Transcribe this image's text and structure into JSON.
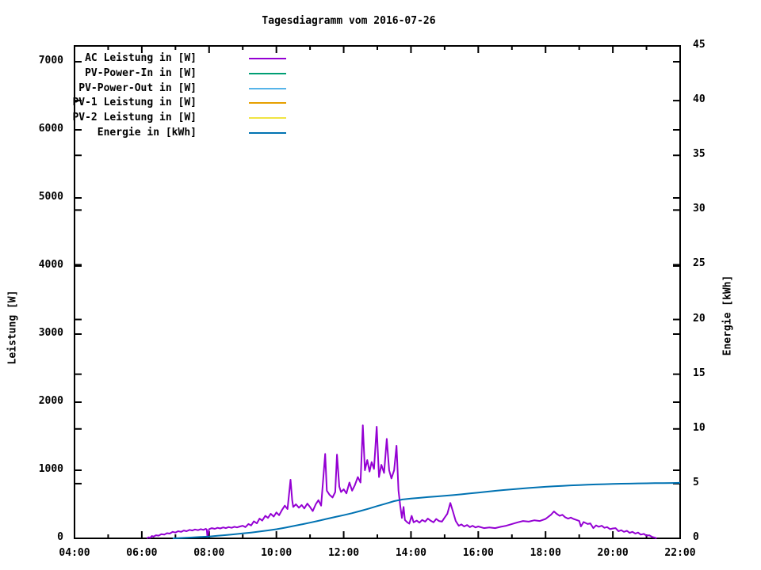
{
  "title": "Tagesdiagramm vom 2016-07-26",
  "axes": {
    "x": {
      "ticks": [
        {
          "hour": 4,
          "label": "04:00"
        },
        {
          "hour": 6,
          "label": "06:00"
        },
        {
          "hour": 8,
          "label": "08:00"
        },
        {
          "hour": 10,
          "label": "10:00"
        },
        {
          "hour": 12,
          "label": "12:00"
        },
        {
          "hour": 14,
          "label": "14:00"
        },
        {
          "hour": 16,
          "label": "16:00"
        },
        {
          "hour": 18,
          "label": "18:00"
        },
        {
          "hour": 20,
          "label": "20:00"
        },
        {
          "hour": 22,
          "label": "22:00"
        }
      ],
      "minor_hours": [
        5,
        7,
        9,
        11,
        13,
        15,
        17,
        19,
        21
      ],
      "min_hour": 4,
      "max_hour": 22
    },
    "y_left": {
      "label": "Leistung [W]",
      "min": 0,
      "tick_step": 1000,
      "ticks": [
        0,
        1000,
        2000,
        3000,
        4000,
        5000,
        6000,
        7000
      ]
    },
    "y_right": {
      "label": "Energie [kWh]",
      "min": 0,
      "max": 45,
      "tick_step": 5,
      "ticks": [
        0,
        5,
        10,
        15,
        20,
        25,
        30,
        35,
        40,
        45
      ]
    }
  },
  "legend": [
    {
      "label": "AC Leistung in [W]",
      "color": "#9400d3"
    },
    {
      "label": "PV-Power-In in [W]",
      "color": "#009e73"
    },
    {
      "label": "PV-Power-Out in [W]",
      "color": "#56b4e9"
    },
    {
      "label": "PV-1 Leistung in [W]",
      "color": "#e69f00"
    },
    {
      "label": "PV-2 Leistung in [W]",
      "color": "#f0e442"
    },
    {
      "label": "Energie in [kWh]",
      "color": "#0072b2"
    }
  ],
  "chart_data": {
    "type": "line",
    "title": "Tagesdiagramm vom 2016-07-26",
    "xlabel": "",
    "x_unit": "time (HH:MM)",
    "x_range_hours": [
      4,
      22
    ],
    "ylabel_left": "Leistung [W]",
    "ylim_left": [
      0,
      7232
    ],
    "ylabel_right": "Energie [kWh]",
    "ylim_right": [
      0,
      45
    ],
    "grid": false,
    "legend_position": "top-left-inside",
    "series": [
      {
        "name": "AC Leistung in [W]",
        "color": "#9400d3",
        "axis": "left",
        "points": [
          [
            6.15,
            0
          ],
          [
            6.2,
            15
          ],
          [
            6.25,
            8
          ],
          [
            6.3,
            35
          ],
          [
            6.35,
            25
          ],
          [
            6.42,
            45
          ],
          [
            6.5,
            40
          ],
          [
            6.58,
            60
          ],
          [
            6.67,
            55
          ],
          [
            6.75,
            75
          ],
          [
            6.83,
            70
          ],
          [
            6.92,
            95
          ],
          [
            7.0,
            85
          ],
          [
            7.08,
            105
          ],
          [
            7.17,
            95
          ],
          [
            7.25,
            115
          ],
          [
            7.33,
            105
          ],
          [
            7.42,
            125
          ],
          [
            7.5,
            115
          ],
          [
            7.58,
            130
          ],
          [
            7.67,
            120
          ],
          [
            7.75,
            135
          ],
          [
            7.83,
            125
          ],
          [
            7.9,
            140
          ],
          [
            7.93,
            130
          ],
          [
            7.95,
            20
          ],
          [
            8.0,
            135
          ],
          [
            8.08,
            150
          ],
          [
            8.17,
            140
          ],
          [
            8.25,
            155
          ],
          [
            8.33,
            145
          ],
          [
            8.42,
            160
          ],
          [
            8.5,
            150
          ],
          [
            8.58,
            165
          ],
          [
            8.67,
            155
          ],
          [
            8.75,
            170
          ],
          [
            8.83,
            160
          ],
          [
            8.92,
            175
          ],
          [
            9.0,
            185
          ],
          [
            9.08,
            165
          ],
          [
            9.17,
            210
          ],
          [
            9.25,
            190
          ],
          [
            9.33,
            250
          ],
          [
            9.42,
            220
          ],
          [
            9.5,
            290
          ],
          [
            9.58,
            260
          ],
          [
            9.67,
            330
          ],
          [
            9.75,
            300
          ],
          [
            9.83,
            360
          ],
          [
            9.92,
            320
          ],
          [
            10.0,
            380
          ],
          [
            10.08,
            340
          ],
          [
            10.17,
            420
          ],
          [
            10.25,
            480
          ],
          [
            10.33,
            430
          ],
          [
            10.42,
            860
          ],
          [
            10.47,
            560
          ],
          [
            10.5,
            460
          ],
          [
            10.58,
            500
          ],
          [
            10.67,
            450
          ],
          [
            10.75,
            490
          ],
          [
            10.83,
            440
          ],
          [
            10.92,
            510
          ],
          [
            11.0,
            460
          ],
          [
            11.08,
            400
          ],
          [
            11.17,
            500
          ],
          [
            11.25,
            560
          ],
          [
            11.33,
            480
          ],
          [
            11.45,
            1240
          ],
          [
            11.5,
            700
          ],
          [
            11.58,
            640
          ],
          [
            11.67,
            600
          ],
          [
            11.75,
            680
          ],
          [
            11.8,
            1230
          ],
          [
            11.87,
            760
          ],
          [
            11.92,
            680
          ],
          [
            12.0,
            720
          ],
          [
            12.08,
            660
          ],
          [
            12.17,
            820
          ],
          [
            12.25,
            700
          ],
          [
            12.33,
            780
          ],
          [
            12.42,
            900
          ],
          [
            12.5,
            820
          ],
          [
            12.57,
            1660
          ],
          [
            12.63,
            1000
          ],
          [
            12.7,
            1150
          ],
          [
            12.77,
            980
          ],
          [
            12.83,
            1120
          ],
          [
            12.9,
            1020
          ],
          [
            12.98,
            1640
          ],
          [
            13.05,
            900
          ],
          [
            13.12,
            1080
          ],
          [
            13.2,
            960
          ],
          [
            13.28,
            1460
          ],
          [
            13.35,
            1000
          ],
          [
            13.42,
            880
          ],
          [
            13.5,
            1000
          ],
          [
            13.57,
            1360
          ],
          [
            13.63,
            700
          ],
          [
            13.68,
            480
          ],
          [
            13.73,
            300
          ],
          [
            13.78,
            460
          ],
          [
            13.82,
            270
          ],
          [
            13.88,
            240
          ],
          [
            13.95,
            215
          ],
          [
            14.02,
            330
          ],
          [
            14.08,
            235
          ],
          [
            14.17,
            260
          ],
          [
            14.25,
            230
          ],
          [
            14.33,
            270
          ],
          [
            14.42,
            245
          ],
          [
            14.5,
            290
          ],
          [
            14.58,
            260
          ],
          [
            14.67,
            235
          ],
          [
            14.75,
            285
          ],
          [
            14.83,
            255
          ],
          [
            14.92,
            245
          ],
          [
            15.0,
            305
          ],
          [
            15.08,
            360
          ],
          [
            15.17,
            520
          ],
          [
            15.25,
            390
          ],
          [
            15.33,
            255
          ],
          [
            15.42,
            185
          ],
          [
            15.5,
            205
          ],
          [
            15.58,
            175
          ],
          [
            15.67,
            195
          ],
          [
            15.75,
            165
          ],
          [
            15.83,
            185
          ],
          [
            15.92,
            160
          ],
          [
            16.0,
            175
          ],
          [
            16.17,
            150
          ],
          [
            16.33,
            160
          ],
          [
            16.5,
            150
          ],
          [
            16.67,
            170
          ],
          [
            16.83,
            185
          ],
          [
            17.0,
            210
          ],
          [
            17.17,
            235
          ],
          [
            17.33,
            255
          ],
          [
            17.5,
            245
          ],
          [
            17.67,
            265
          ],
          [
            17.83,
            255
          ],
          [
            18.0,
            285
          ],
          [
            18.17,
            350
          ],
          [
            18.25,
            395
          ],
          [
            18.33,
            360
          ],
          [
            18.42,
            330
          ],
          [
            18.5,
            345
          ],
          [
            18.58,
            310
          ],
          [
            18.67,
            290
          ],
          [
            18.75,
            305
          ],
          [
            18.83,
            285
          ],
          [
            18.92,
            270
          ],
          [
            19.0,
            255
          ],
          [
            19.05,
            175
          ],
          [
            19.13,
            240
          ],
          [
            19.25,
            210
          ],
          [
            19.33,
            220
          ],
          [
            19.42,
            150
          ],
          [
            19.5,
            190
          ],
          [
            19.58,
            170
          ],
          [
            19.67,
            185
          ],
          [
            19.75,
            155
          ],
          [
            19.83,
            165
          ],
          [
            19.92,
            135
          ],
          [
            20.0,
            145
          ],
          [
            20.08,
            150
          ],
          [
            20.17,
            105
          ],
          [
            20.25,
            120
          ],
          [
            20.33,
            95
          ],
          [
            20.42,
            110
          ],
          [
            20.5,
            80
          ],
          [
            20.58,
            95
          ],
          [
            20.67,
            70
          ],
          [
            20.75,
            85
          ],
          [
            20.83,
            55
          ],
          [
            20.92,
            65
          ],
          [
            21.0,
            40
          ],
          [
            21.08,
            45
          ],
          [
            21.17,
            20
          ],
          [
            21.25,
            10
          ],
          [
            21.3,
            0
          ]
        ]
      },
      {
        "name": "PV-Power-In in [W]",
        "color": "#009e73",
        "axis": "left",
        "points": []
      },
      {
        "name": "PV-Power-Out in [W]",
        "color": "#56b4e9",
        "axis": "left",
        "points": []
      },
      {
        "name": "PV-1 Leistung in [W]",
        "color": "#e69f00",
        "axis": "left",
        "points": []
      },
      {
        "name": "PV-2 Leistung in [W]",
        "color": "#f0e442",
        "axis": "left",
        "points": []
      },
      {
        "name": "Energie in [kWh]",
        "color": "#0072b2",
        "axis": "right",
        "points": [
          [
            6.92,
            0
          ],
          [
            7.25,
            0.04
          ],
          [
            7.5,
            0.08
          ],
          [
            7.75,
            0.12
          ],
          [
            8.0,
            0.17
          ],
          [
            8.25,
            0.23
          ],
          [
            8.5,
            0.3
          ],
          [
            8.75,
            0.37
          ],
          [
            9.0,
            0.45
          ],
          [
            9.25,
            0.53
          ],
          [
            9.5,
            0.62
          ],
          [
            9.75,
            0.72
          ],
          [
            10.0,
            0.83
          ],
          [
            10.25,
            0.97
          ],
          [
            10.5,
            1.12
          ],
          [
            10.75,
            1.27
          ],
          [
            11.0,
            1.43
          ],
          [
            11.25,
            1.6
          ],
          [
            11.5,
            1.78
          ],
          [
            11.75,
            1.95
          ],
          [
            12.0,
            2.12
          ],
          [
            12.25,
            2.3
          ],
          [
            12.5,
            2.5
          ],
          [
            12.75,
            2.72
          ],
          [
            13.0,
            2.95
          ],
          [
            13.25,
            3.17
          ],
          [
            13.5,
            3.4
          ],
          [
            13.75,
            3.55
          ],
          [
            14.0,
            3.63
          ],
          [
            14.25,
            3.7
          ],
          [
            14.5,
            3.77
          ],
          [
            14.75,
            3.83
          ],
          [
            15.0,
            3.89
          ],
          [
            15.25,
            3.95
          ],
          [
            15.5,
            4.02
          ],
          [
            15.75,
            4.1
          ],
          [
            16.0,
            4.18
          ],
          [
            16.25,
            4.26
          ],
          [
            16.5,
            4.34
          ],
          [
            16.75,
            4.41
          ],
          [
            17.0,
            4.48
          ],
          [
            17.25,
            4.54
          ],
          [
            17.5,
            4.6
          ],
          [
            17.75,
            4.66
          ],
          [
            18.0,
            4.71
          ],
          [
            18.25,
            4.76
          ],
          [
            18.5,
            4.8
          ],
          [
            18.75,
            4.84
          ],
          [
            19.0,
            4.87
          ],
          [
            19.25,
            4.9
          ],
          [
            19.5,
            4.93
          ],
          [
            19.75,
            4.95
          ],
          [
            20.0,
            4.97
          ],
          [
            20.25,
            4.99
          ],
          [
            20.5,
            5.0
          ],
          [
            20.75,
            5.02
          ],
          [
            21.0,
            5.03
          ],
          [
            21.25,
            5.04
          ],
          [
            21.5,
            5.05
          ],
          [
            21.75,
            5.06
          ],
          [
            22.0,
            5.07
          ]
        ]
      }
    ]
  }
}
